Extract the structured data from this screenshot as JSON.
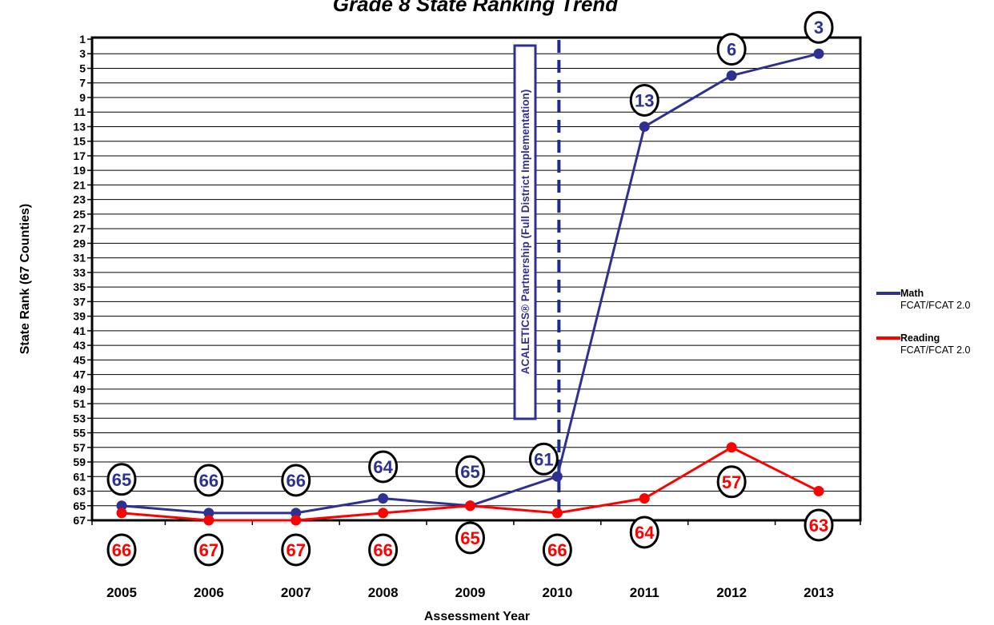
{
  "chart_data": {
    "type": "line",
    "title": "Grade 8 State Ranking Trend",
    "xlabel": "Assessment Year",
    "ylabel": "State Rank (67 Counties)",
    "categories": [
      "2005",
      "2006",
      "2007",
      "2008",
      "2009",
      "2010",
      "2011",
      "2012",
      "2013"
    ],
    "y_ticks": [
      "1",
      "3",
      "5",
      "7",
      "9",
      "11",
      "13",
      "15",
      "17",
      "19",
      "21",
      "23",
      "25",
      "27",
      "29",
      "31",
      "33",
      "35",
      "37",
      "39",
      "41",
      "43",
      "45",
      "47",
      "49",
      "51",
      "53",
      "55",
      "57",
      "59",
      "61",
      "63",
      "65",
      "67"
    ],
    "ylim": [
      1,
      67
    ],
    "y_reversed": true,
    "grid": true,
    "legend_position": "right",
    "series": [
      {
        "name": "Math",
        "name_sub": "FCAT/FCAT 2.0",
        "color": "#2e3192",
        "values": [
          65,
          66,
          66,
          64,
          65,
          61,
          13,
          6,
          3
        ],
        "labels": [
          "65",
          "66",
          "66",
          "64",
          "65",
          "61",
          "13",
          "6",
          "3"
        ]
      },
      {
        "name": "Reading",
        "name_sub": "FCAT/FCAT 2.0",
        "color": "#ff0000",
        "values": [
          66,
          67,
          67,
          66,
          65,
          66,
          64,
          57,
          63
        ],
        "labels": [
          "66",
          "67",
          "67",
          "66",
          "65",
          "66",
          "64",
          "57",
          "63"
        ]
      }
    ],
    "annotations": [
      {
        "text": "ACALETICS® Partnership (Full District Implementation)",
        "at_category": "2010",
        "style": "dashed-vertical-line",
        "color": "#1f2a8a"
      }
    ]
  }
}
